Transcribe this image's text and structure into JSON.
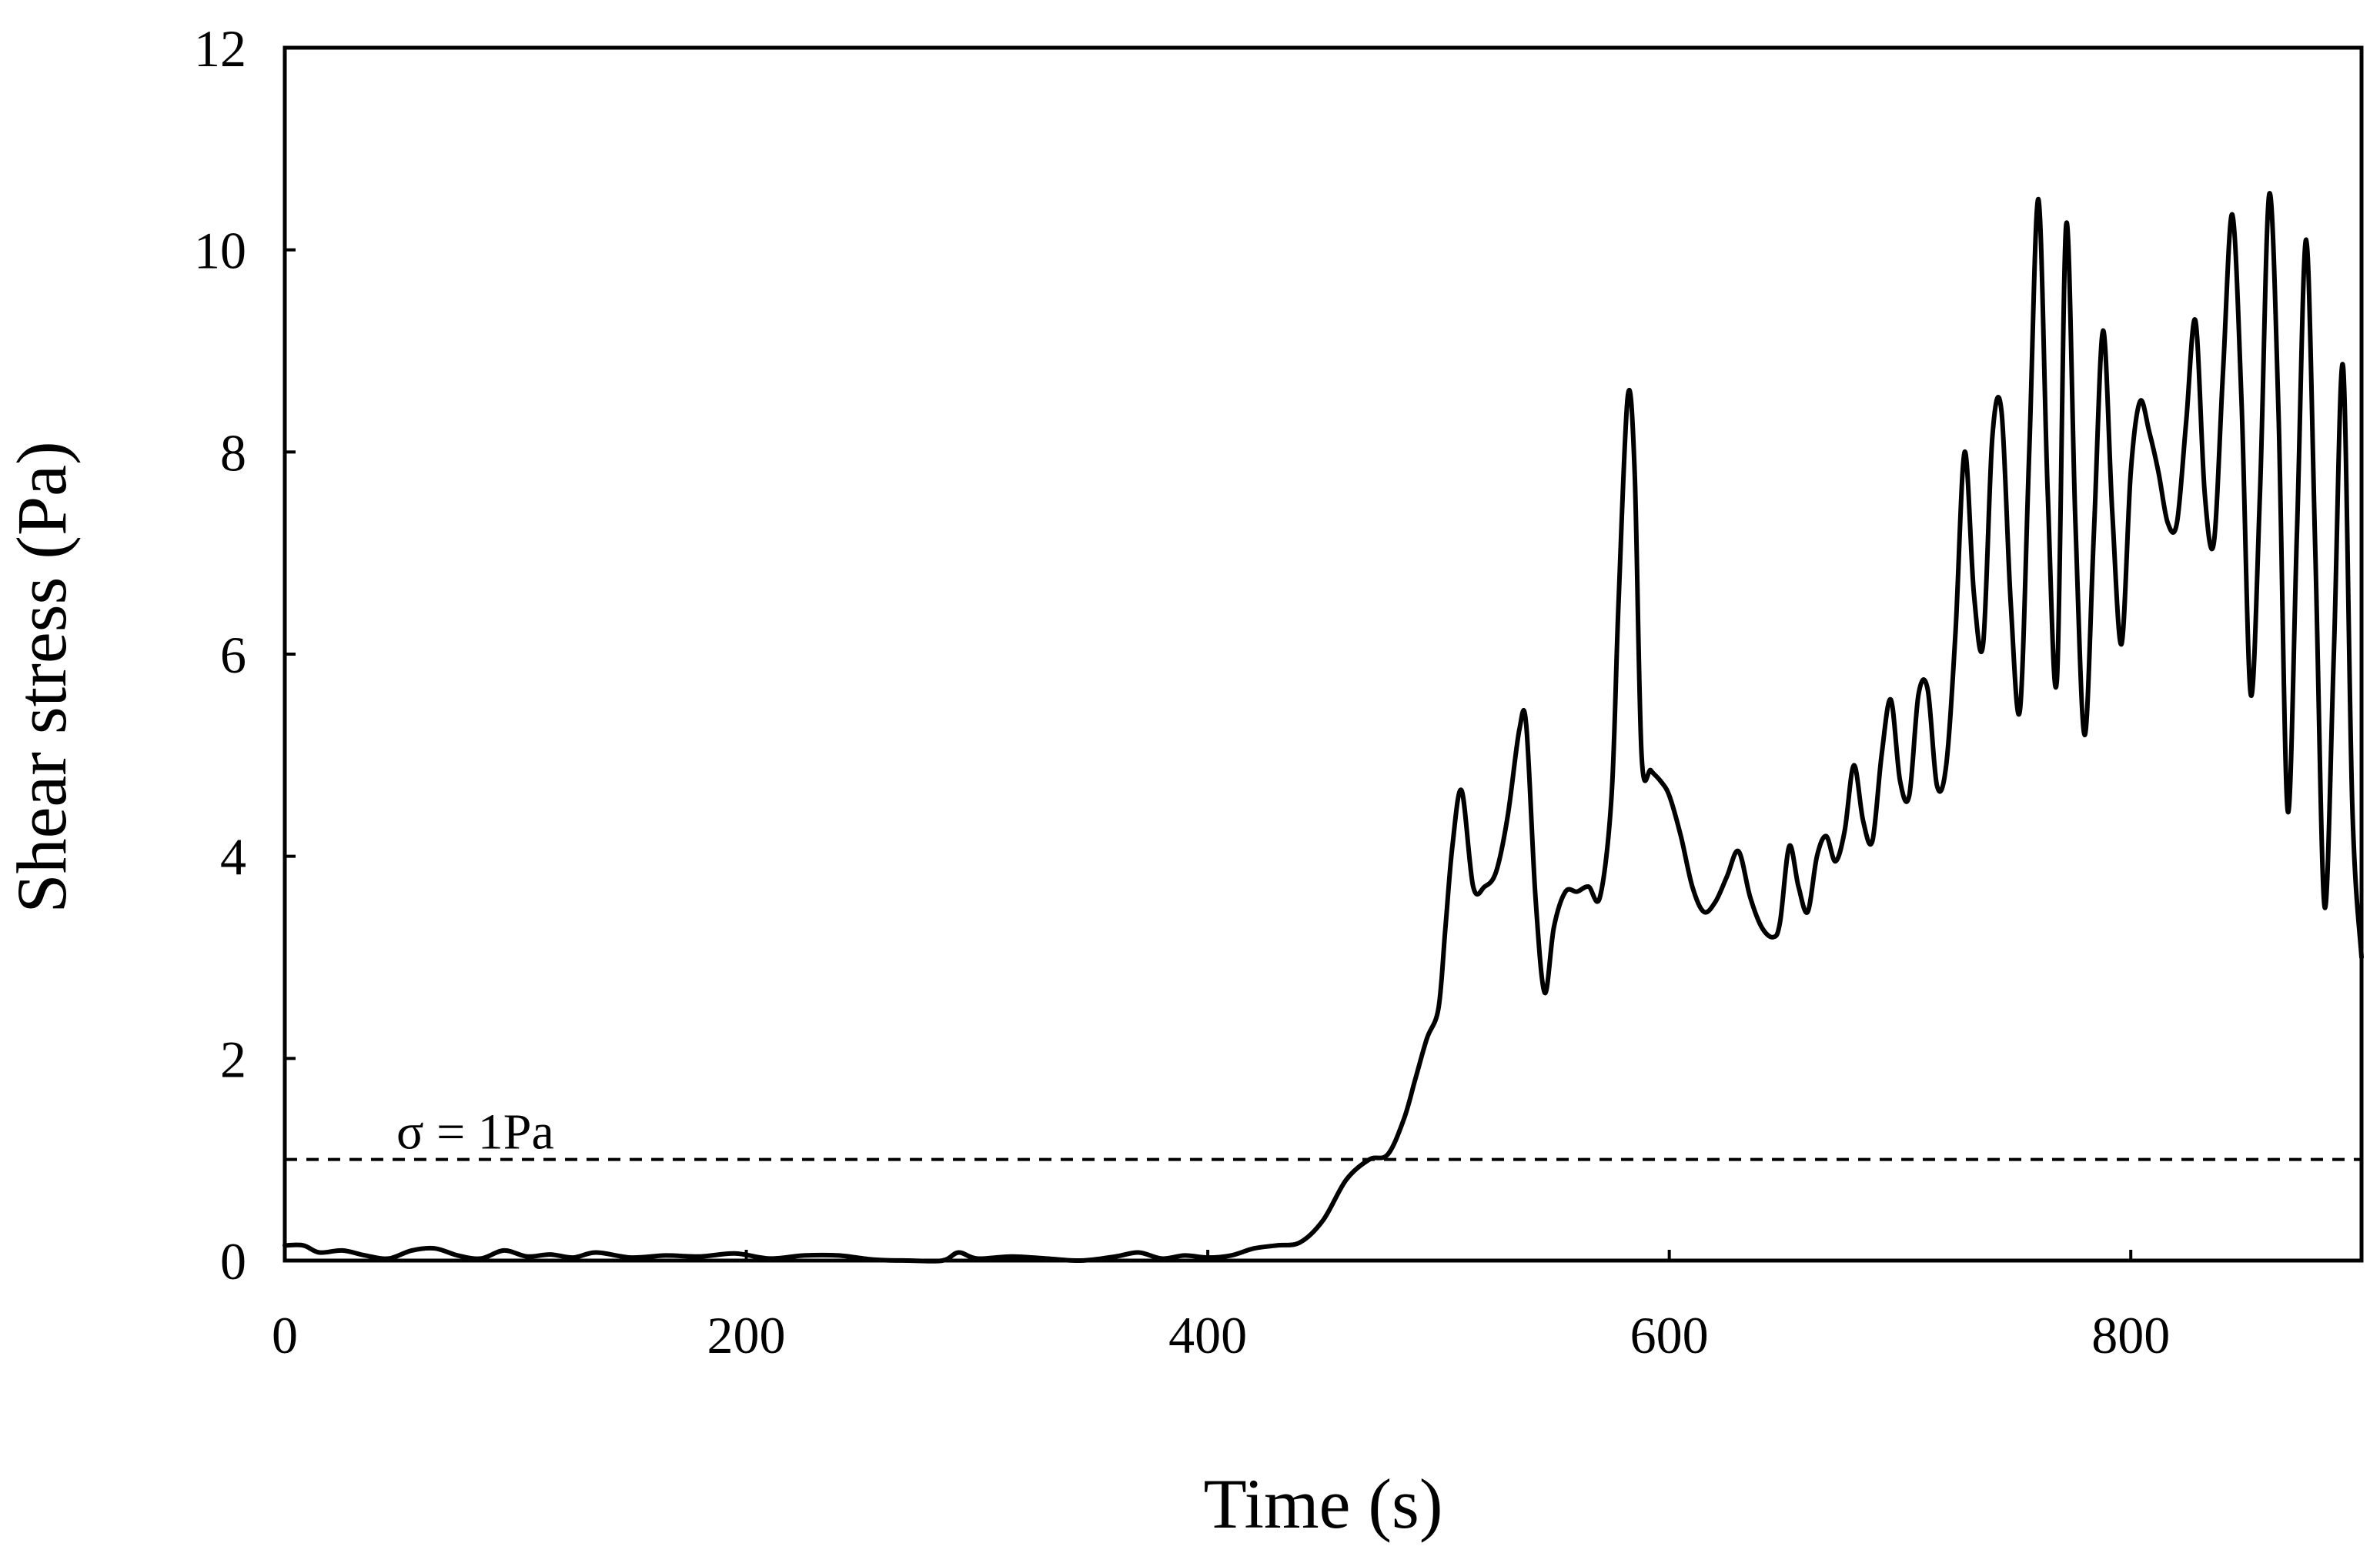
{
  "chart_data": {
    "type": "line",
    "title": "",
    "xlabel": "Time (s)",
    "ylabel": "Shear stress (Pa)",
    "xlim": [
      0,
      900
    ],
    "ylim": [
      0,
      12
    ],
    "xticks": [
      0,
      200,
      400,
      600,
      800
    ],
    "yticks": [
      0,
      2,
      4,
      6,
      8,
      10,
      12
    ],
    "grid": false,
    "legend": "none",
    "colors": {
      "line": "#000000",
      "reference_line": "#000000"
    },
    "reference_line": {
      "y": 1,
      "style": "dashed",
      "label": "σ = 1Pa"
    },
    "series": [
      {
        "x": [
          0,
          8,
          15,
          25,
          35,
          45,
          55,
          65,
          75,
          85,
          95,
          105,
          115,
          125,
          135,
          150,
          165,
          180,
          195,
          210,
          225,
          240,
          255,
          270,
          285,
          292,
          300,
          315,
          330,
          345,
          360,
          370,
          380,
          390,
          400,
          410,
          420,
          430,
          440,
          450,
          460,
          470,
          478,
          485,
          490,
          495,
          500,
          503,
          506,
          510,
          515,
          520,
          525,
          530,
          535,
          538,
          542,
          546,
          550,
          555,
          560,
          565,
          570,
          575,
          578,
          582,
          585,
          588,
          592,
          596,
          600,
          605,
          610,
          615,
          620,
          625,
          630,
          635,
          640,
          645,
          648,
          652,
          656,
          660,
          664,
          668,
          672,
          676,
          680,
          684,
          688,
          692,
          696,
          700,
          704,
          708,
          712,
          716,
          720,
          724,
          728,
          732,
          736,
          740,
          744,
          748,
          752,
          756,
          760,
          764,
          768,
          772,
          776,
          780,
          784,
          788,
          792,
          796,
          800,
          804,
          808,
          812,
          816,
          820,
          824,
          828,
          832,
          836,
          840,
          844,
          848,
          852,
          856,
          860,
          864,
          868,
          872,
          876,
          880,
          884,
          888,
          892,
          896,
          900
        ],
        "y": [
          0.15,
          0.15,
          0.08,
          0.1,
          0.05,
          0.02,
          0.1,
          0.12,
          0.05,
          0.02,
          0.1,
          0.04,
          0.06,
          0.03,
          0.08,
          0.03,
          0.05,
          0.04,
          0.07,
          0.02,
          0.05,
          0.05,
          0.01,
          0.0,
          0.0,
          0.08,
          0.02,
          0.04,
          0.02,
          0.0,
          0.04,
          0.08,
          0.02,
          0.05,
          0.03,
          0.05,
          0.12,
          0.15,
          0.18,
          0.4,
          0.8,
          1.0,
          1.05,
          1.4,
          1.8,
          2.2,
          2.5,
          3.3,
          4.1,
          4.65,
          3.7,
          3.7,
          3.85,
          4.4,
          5.25,
          5.3,
          3.6,
          2.65,
          3.3,
          3.65,
          3.65,
          3.7,
          3.6,
          4.6,
          6.5,
          8.55,
          7.8,
          5.0,
          4.85,
          4.75,
          4.6,
          4.2,
          3.7,
          3.45,
          3.55,
          3.8,
          4.05,
          3.6,
          3.3,
          3.2,
          3.35,
          4.1,
          3.7,
          3.45,
          4.0,
          4.2,
          3.95,
          4.25,
          4.9,
          4.35,
          4.15,
          5.0,
          5.55,
          4.75,
          4.6,
          5.6,
          5.65,
          4.7,
          4.9,
          6.2,
          8.0,
          6.6,
          6.1,
          8.15,
          8.4,
          6.5,
          5.45,
          8.0,
          10.5,
          7.6,
          5.75,
          10.25,
          7.3,
          5.2,
          7.2,
          9.2,
          7.4,
          6.1,
          7.8,
          8.5,
          8.2,
          7.8,
          7.3,
          7.3,
          8.3,
          9.3,
          7.6,
          7.1,
          8.8,
          10.35,
          8.5,
          5.6,
          7.6,
          10.55,
          8.4,
          4.45,
          7.2,
          10.1,
          7.0,
          3.5,
          6.0,
          8.85,
          4.5,
          3.0
        ]
      }
    ]
  }
}
